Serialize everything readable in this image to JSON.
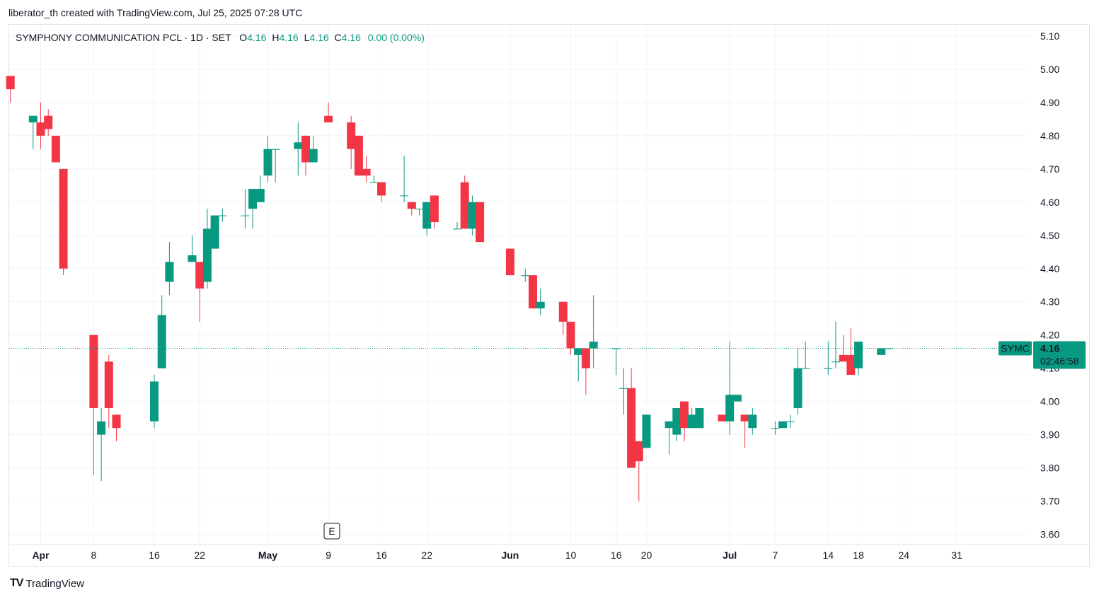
{
  "caption": "liberator_th created with TradingView.com, Jul 25, 2025 07:28 UTC",
  "legend": {
    "symbol_title": "SYMPHONY COMMUNICATION PCL · 1D · SET",
    "o_label": "O",
    "o_value": "4.16",
    "h_label": "H",
    "h_value": "4.16",
    "l_label": "L",
    "l_value": "4.16",
    "c_label": "C",
    "c_value": "4.16",
    "change": "0.00 (0.00%)"
  },
  "brand": {
    "name": "TradingView",
    "logo": "TV"
  },
  "price_tag": {
    "ticker": "SYMC",
    "price": "4.16",
    "countdown": "02:46:58"
  },
  "event_marker": "E",
  "colors": {
    "up": "#089981",
    "down": "#f23645",
    "grid": "#f0f3fa",
    "last_line": "#089981"
  },
  "chart_data": {
    "type": "candlestick",
    "ylim": [
      3.58,
      5.13
    ],
    "y_ticks": [
      "3.60",
      "3.70",
      "3.80",
      "3.90",
      "4.00",
      "4.10",
      "4.20",
      "4.30",
      "4.40",
      "4.50",
      "4.60",
      "4.70",
      "4.80",
      "4.90",
      "5.00",
      "5.10"
    ],
    "x_ticks": [
      {
        "label": "Apr",
        "bold": true,
        "date": "2025-04-01"
      },
      {
        "label": "8",
        "bold": false,
        "date": "2025-04-08"
      },
      {
        "label": "16",
        "bold": false,
        "date": "2025-04-16"
      },
      {
        "label": "22",
        "bold": false,
        "date": "2025-04-22"
      },
      {
        "label": "May",
        "bold": true,
        "date": "2025-05-01"
      },
      {
        "label": "9",
        "bold": false,
        "date": "2025-05-09"
      },
      {
        "label": "16",
        "bold": false,
        "date": "2025-05-16"
      },
      {
        "label": "22",
        "bold": false,
        "date": "2025-05-22"
      },
      {
        "label": "Jun",
        "bold": true,
        "date": "2025-06-02"
      },
      {
        "label": "10",
        "bold": false,
        "date": "2025-06-10"
      },
      {
        "label": "16",
        "bold": false,
        "date": "2025-06-16"
      },
      {
        "label": "20",
        "bold": false,
        "date": "2025-06-20"
      },
      {
        "label": "Jul",
        "bold": true,
        "date": "2025-07-01"
      },
      {
        "label": "7",
        "bold": false,
        "date": "2025-07-07"
      },
      {
        "label": "14",
        "bold": false,
        "date": "2025-07-14"
      },
      {
        "label": "18",
        "bold": false,
        "date": "2025-07-18"
      },
      {
        "label": "24",
        "bold": false,
        "date": "2025-07-24"
      },
      {
        "label": "31",
        "bold": false,
        "date": "2025-07-31"
      }
    ],
    "last_price": 4.16,
    "candles": [
      {
        "date": "2025-03-28",
        "open": 4.98,
        "high": 4.98,
        "low": 4.9,
        "close": 4.94
      },
      {
        "date": "2025-03-31",
        "open": 4.84,
        "high": 4.86,
        "low": 4.76,
        "close": 4.86
      },
      {
        "date": "2025-04-01",
        "open": 4.84,
        "high": 4.9,
        "low": 4.76,
        "close": 4.8
      },
      {
        "date": "2025-04-02",
        "open": 4.86,
        "high": 4.88,
        "low": 4.8,
        "close": 4.82
      },
      {
        "date": "2025-04-03",
        "open": 4.8,
        "high": 4.8,
        "low": 4.72,
        "close": 4.72
      },
      {
        "date": "2025-04-04",
        "open": 4.7,
        "high": 4.7,
        "low": 4.38,
        "close": 4.4
      },
      {
        "date": "2025-04-08",
        "open": 4.2,
        "high": 4.2,
        "low": 3.78,
        "close": 3.98
      },
      {
        "date": "2025-04-09",
        "open": 3.9,
        "high": 3.98,
        "low": 3.76,
        "close": 3.94
      },
      {
        "date": "2025-04-10",
        "open": 4.12,
        "high": 4.14,
        "low": 3.92,
        "close": 3.98
      },
      {
        "date": "2025-04-11",
        "open": 3.96,
        "high": 3.96,
        "low": 3.88,
        "close": 3.92
      },
      {
        "date": "2025-04-16",
        "open": 3.94,
        "high": 4.08,
        "low": 3.92,
        "close": 4.06
      },
      {
        "date": "2025-04-17",
        "open": 4.1,
        "high": 4.32,
        "low": 4.1,
        "close": 4.26
      },
      {
        "date": "2025-04-18",
        "open": 4.36,
        "high": 4.48,
        "low": 4.32,
        "close": 4.42
      },
      {
        "date": "2025-04-21",
        "open": 4.42,
        "high": 4.5,
        "low": 4.42,
        "close": 4.44
      },
      {
        "date": "2025-04-22",
        "open": 4.42,
        "high": 4.42,
        "low": 4.24,
        "close": 4.34
      },
      {
        "date": "2025-04-23",
        "open": 4.36,
        "high": 4.58,
        "low": 4.34,
        "close": 4.52
      },
      {
        "date": "2025-04-24",
        "open": 4.46,
        "high": 4.56,
        "low": 4.46,
        "close": 4.56
      },
      {
        "date": "2025-04-25",
        "open": 4.56,
        "high": 4.58,
        "low": 4.54,
        "close": 4.56
      },
      {
        "date": "2025-04-28",
        "open": 4.56,
        "high": 4.64,
        "low": 4.52,
        "close": 4.56
      },
      {
        "date": "2025-04-29",
        "open": 4.58,
        "high": 4.64,
        "low": 4.52,
        "close": 4.64
      },
      {
        "date": "2025-04-30",
        "open": 4.6,
        "high": 4.68,
        "low": 4.6,
        "close": 4.64
      },
      {
        "date": "2025-05-01",
        "open": 4.68,
        "high": 4.8,
        "low": 4.66,
        "close": 4.76
      },
      {
        "date": "2025-05-02",
        "open": 4.76,
        "high": 4.76,
        "low": 4.66,
        "close": 4.76
      },
      {
        "date": "2025-05-05",
        "open": 4.76,
        "high": 4.84,
        "low": 4.68,
        "close": 4.78
      },
      {
        "date": "2025-05-06",
        "open": 4.8,
        "high": 4.8,
        "low": 4.68,
        "close": 4.72
      },
      {
        "date": "2025-05-07",
        "open": 4.72,
        "high": 4.8,
        "low": 4.72,
        "close": 4.76
      },
      {
        "date": "2025-05-09",
        "open": 4.86,
        "high": 4.9,
        "low": 4.84,
        "close": 4.84
      },
      {
        "date": "2025-05-12",
        "open": 4.84,
        "high": 4.86,
        "low": 4.7,
        "close": 4.76
      },
      {
        "date": "2025-05-13",
        "open": 4.8,
        "high": 4.8,
        "low": 4.68,
        "close": 4.68
      },
      {
        "date": "2025-05-14",
        "open": 4.7,
        "high": 4.74,
        "low": 4.66,
        "close": 4.68
      },
      {
        "date": "2025-05-15",
        "open": 4.66,
        "high": 4.68,
        "low": 4.66,
        "close": 4.66
      },
      {
        "date": "2025-05-16",
        "open": 4.66,
        "high": 4.66,
        "low": 4.6,
        "close": 4.62
      },
      {
        "date": "2025-05-19",
        "open": 4.62,
        "high": 4.74,
        "low": 4.6,
        "close": 4.62
      },
      {
        "date": "2025-05-20",
        "open": 4.6,
        "high": 4.6,
        "low": 4.56,
        "close": 4.58
      },
      {
        "date": "2025-05-21",
        "open": 4.58,
        "high": 4.58,
        "low": 4.56,
        "close": 4.58
      },
      {
        "date": "2025-05-22",
        "open": 4.52,
        "high": 4.6,
        "low": 4.5,
        "close": 4.6
      },
      {
        "date": "2025-05-23",
        "open": 4.62,
        "high": 4.62,
        "low": 4.52,
        "close": 4.54
      },
      {
        "date": "2025-05-26",
        "open": 4.52,
        "high": 4.54,
        "low": 4.52,
        "close": 4.52
      },
      {
        "date": "2025-05-27",
        "open": 4.66,
        "high": 4.68,
        "low": 4.52,
        "close": 4.52
      },
      {
        "date": "2025-05-28",
        "open": 4.52,
        "high": 4.62,
        "low": 4.5,
        "close": 4.6
      },
      {
        "date": "2025-05-29",
        "open": 4.6,
        "high": 4.6,
        "low": 4.48,
        "close": 4.48
      },
      {
        "date": "2025-06-02",
        "open": 4.46,
        "high": 4.46,
        "low": 4.38,
        "close": 4.38
      },
      {
        "date": "2025-06-04",
        "open": 4.38,
        "high": 4.4,
        "low": 4.36,
        "close": 4.38
      },
      {
        "date": "2025-06-05",
        "open": 4.38,
        "high": 4.38,
        "low": 4.28,
        "close": 4.28
      },
      {
        "date": "2025-06-06",
        "open": 4.28,
        "high": 4.34,
        "low": 4.26,
        "close": 4.3
      },
      {
        "date": "2025-06-09",
        "open": 4.3,
        "high": 4.3,
        "low": 4.2,
        "close": 4.24
      },
      {
        "date": "2025-06-10",
        "open": 4.24,
        "high": 4.24,
        "low": 4.14,
        "close": 4.16
      },
      {
        "date": "2025-06-11",
        "open": 4.14,
        "high": 4.16,
        "low": 4.06,
        "close": 4.16
      },
      {
        "date": "2025-06-12",
        "open": 4.16,
        "high": 4.16,
        "low": 4.02,
        "close": 4.1
      },
      {
        "date": "2025-06-13",
        "open": 4.16,
        "high": 4.32,
        "low": 4.1,
        "close": 4.18
      },
      {
        "date": "2025-06-16",
        "open": 4.16,
        "high": 4.16,
        "low": 4.08,
        "close": 4.16
      },
      {
        "date": "2025-06-17",
        "open": 4.04,
        "high": 4.1,
        "low": 3.96,
        "close": 4.04
      },
      {
        "date": "2025-06-18",
        "open": 4.04,
        "high": 4.1,
        "low": 3.8,
        "close": 3.8
      },
      {
        "date": "2025-06-19",
        "open": 3.88,
        "high": 3.88,
        "low": 3.7,
        "close": 3.82
      },
      {
        "date": "2025-06-20",
        "open": 3.86,
        "high": 3.96,
        "low": 3.86,
        "close": 3.96
      },
      {
        "date": "2025-06-23",
        "open": 3.92,
        "high": 3.94,
        "low": 3.84,
        "close": 3.94
      },
      {
        "date": "2025-06-24",
        "open": 3.9,
        "high": 3.98,
        "low": 3.88,
        "close": 3.98
      },
      {
        "date": "2025-06-25",
        "open": 4.0,
        "high": 4.0,
        "low": 3.88,
        "close": 3.92
      },
      {
        "date": "2025-06-26",
        "open": 3.92,
        "high": 3.98,
        "low": 3.92,
        "close": 3.96
      },
      {
        "date": "2025-06-27",
        "open": 3.92,
        "high": 3.98,
        "low": 3.92,
        "close": 3.98
      },
      {
        "date": "2025-06-30",
        "open": 3.96,
        "high": 3.96,
        "low": 3.94,
        "close": 3.94
      },
      {
        "date": "2025-07-01",
        "open": 3.94,
        "high": 4.18,
        "low": 3.9,
        "close": 4.02
      },
      {
        "date": "2025-07-02",
        "open": 4.0,
        "high": 4.02,
        "low": 4.0,
        "close": 4.02
      },
      {
        "date": "2025-07-03",
        "open": 3.96,
        "high": 3.96,
        "low": 3.86,
        "close": 3.94
      },
      {
        "date": "2025-07-04",
        "open": 3.92,
        "high": 3.98,
        "low": 3.9,
        "close": 3.96
      },
      {
        "date": "2025-07-07",
        "open": 3.92,
        "high": 3.94,
        "low": 3.9,
        "close": 3.92
      },
      {
        "date": "2025-07-08",
        "open": 3.92,
        "high": 3.94,
        "low": 3.92,
        "close": 3.94
      },
      {
        "date": "2025-07-09",
        "open": 3.94,
        "high": 3.96,
        "low": 3.92,
        "close": 3.94
      },
      {
        "date": "2025-07-10",
        "open": 3.98,
        "high": 4.16,
        "low": 3.96,
        "close": 4.1
      },
      {
        "date": "2025-07-11",
        "open": 4.1,
        "high": 4.18,
        "low": 4.1,
        "close": 4.1
      },
      {
        "date": "2025-07-14",
        "open": 4.1,
        "high": 4.18,
        "low": 4.08,
        "close": 4.1
      },
      {
        "date": "2025-07-15",
        "open": 4.12,
        "high": 4.24,
        "low": 4.1,
        "close": 4.12
      },
      {
        "date": "2025-07-16",
        "open": 4.14,
        "high": 4.2,
        "low": 4.12,
        "close": 4.12
      },
      {
        "date": "2025-07-17",
        "open": 4.14,
        "high": 4.22,
        "low": 4.08,
        "close": 4.08
      },
      {
        "date": "2025-07-18",
        "open": 4.1,
        "high": 4.18,
        "low": 4.08,
        "close": 4.18
      },
      {
        "date": "2025-07-21",
        "open": 4.14,
        "high": 4.16,
        "low": 4.14,
        "close": 4.16
      },
      {
        "date": "2025-07-22",
        "open": 4.16,
        "high": 4.16,
        "low": 4.16,
        "close": 4.16
      }
    ]
  }
}
